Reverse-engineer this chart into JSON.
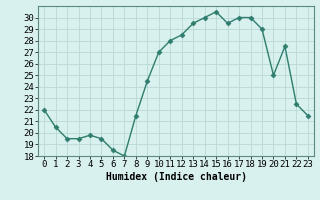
{
  "x": [
    0,
    1,
    2,
    3,
    4,
    5,
    6,
    7,
    8,
    9,
    10,
    11,
    12,
    13,
    14,
    15,
    16,
    17,
    18,
    19,
    20,
    21,
    22,
    23
  ],
  "y": [
    22.0,
    20.5,
    19.5,
    19.5,
    19.8,
    19.5,
    18.5,
    18.0,
    21.5,
    24.5,
    27.0,
    28.0,
    28.5,
    29.5,
    30.0,
    30.5,
    29.5,
    30.0,
    30.0,
    29.0,
    25.0,
    27.5,
    22.5,
    21.5
  ],
  "line_color": "#2e7d6e",
  "marker": "D",
  "marker_size": 2.5,
  "bg_color": "#d8f0ee",
  "grid_color": "#b8d8d4",
  "xlabel": "Humidex (Indice chaleur)",
  "xlim": [
    -0.5,
    23.5
  ],
  "ylim": [
    18,
    31
  ],
  "xticks": [
    0,
    1,
    2,
    3,
    4,
    5,
    6,
    7,
    8,
    9,
    10,
    11,
    12,
    13,
    14,
    15,
    16,
    17,
    18,
    19,
    20,
    21,
    22,
    23
  ],
  "yticks": [
    18,
    19,
    20,
    21,
    22,
    23,
    24,
    25,
    26,
    27,
    28,
    29,
    30
  ],
  "xlabel_fontsize": 7,
  "tick_fontsize": 6.5
}
